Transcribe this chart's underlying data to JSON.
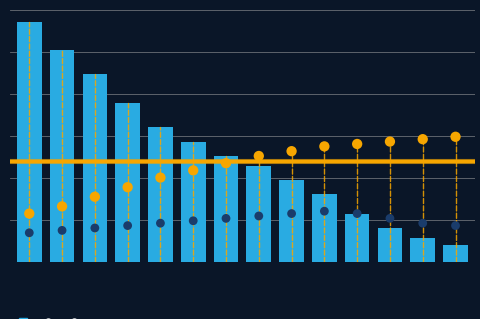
{
  "bar_values": [
    100,
    88,
    78,
    66,
    56,
    50,
    44,
    40,
    34,
    28,
    20,
    14,
    10,
    7
  ],
  "blue_dots": [
    12,
    13,
    14,
    15,
    16,
    17,
    18,
    19,
    20,
    21,
    20,
    18,
    16,
    15
  ],
  "orange_dots": [
    20,
    23,
    27,
    31,
    35,
    38,
    41,
    44,
    46,
    48,
    49,
    50,
    51,
    52
  ],
  "orange_hline": 42,
  "bar_color": "#29ABE2",
  "blue_dot_color": "#1A3C6B",
  "orange_dot_color": "#F7A600",
  "orange_line_color": "#F7A600",
  "dashed_line_color": "#F7A600",
  "background_color": "#0A1628",
  "plot_bg_color": "#0A1628",
  "grid_color": "#AAAAAA",
  "ylim": [
    0,
    105
  ],
  "n_bars": 14,
  "figsize": [
    4.8,
    3.19
  ],
  "dpi": 100,
  "dot_size": 55,
  "blue_dot_size": 40,
  "bar_width": 0.75
}
